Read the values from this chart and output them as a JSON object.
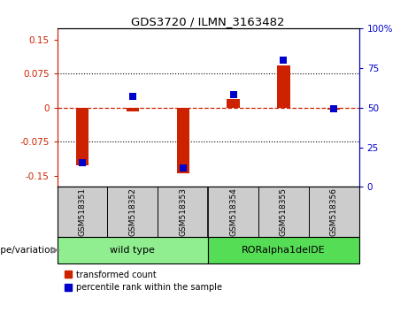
{
  "title": "GDS3720 / ILMN_3163482",
  "samples": [
    "GSM518351",
    "GSM518352",
    "GSM518353",
    "GSM518354",
    "GSM518355",
    "GSM518356"
  ],
  "red_values": [
    -0.128,
    -0.008,
    -0.145,
    0.018,
    0.093,
    -0.005
  ],
  "blue_values_pct": [
    15,
    57,
    12,
    58,
    80,
    49
  ],
  "groups": [
    {
      "label": "wild type",
      "start": 0,
      "end": 3,
      "color": "#90EE90"
    },
    {
      "label": "RORalpha1delDE",
      "start": 3,
      "end": 6,
      "color": "#55DD55"
    }
  ],
  "ylim_left": [
    -0.175,
    0.175
  ],
  "yticks_left": [
    -0.15,
    -0.075,
    0,
    0.075,
    0.15
  ],
  "ylim_right": [
    0,
    100
  ],
  "yticks_right": [
    0,
    25,
    50,
    75,
    100
  ],
  "left_tick_color": "#CC2200",
  "right_tick_color": "#0000CC",
  "bar_color_red": "#CC2200",
  "bar_color_blue": "#0000CC",
  "background_color": "#FFFFFF",
  "label_bg_color": "#CCCCCC",
  "grid_color": "black",
  "zero_line_color": "#CC2200",
  "genotype_label": "genotype/variation",
  "legend_red": "transformed count",
  "legend_blue": "percentile rank within the sample",
  "bar_width": 0.25,
  "blue_marker_size": 6
}
